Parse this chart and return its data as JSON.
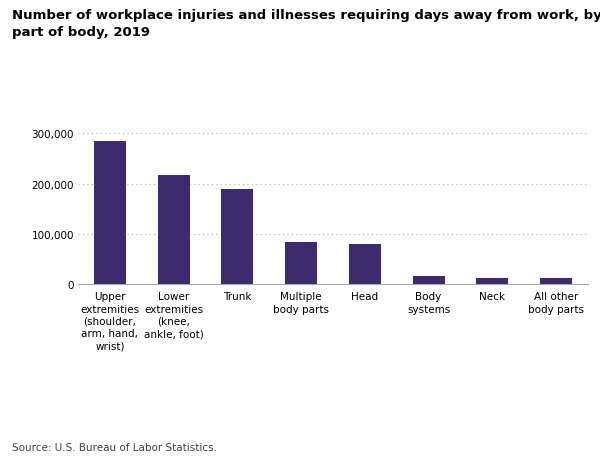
{
  "title": "Number of workplace injuries and illnesses requiring days away from work, by\npart of body, 2019",
  "categories": [
    "Upper\nextremities\n(shoulder,\narm, hand,\nwrist)",
    "Lower\nextremities\n(knee,\nankle, foot)",
    "Trunk",
    "Multiple\nbody parts",
    "Head",
    "Body\nsystems",
    "Neck",
    "All other\nbody parts"
  ],
  "values": [
    285000,
    217000,
    189000,
    83000,
    80000,
    17000,
    13000,
    12000
  ],
  "bar_color": "#3d2b6e",
  "background_color": "#ffffff",
  "ylim": [
    0,
    320000
  ],
  "yticks": [
    0,
    100000,
    200000,
    300000
  ],
  "source_text": "Source: U.S. Bureau of Labor Statistics.",
  "title_fontsize": 9.5,
  "tick_fontsize": 7.5,
  "source_fontsize": 7.5
}
